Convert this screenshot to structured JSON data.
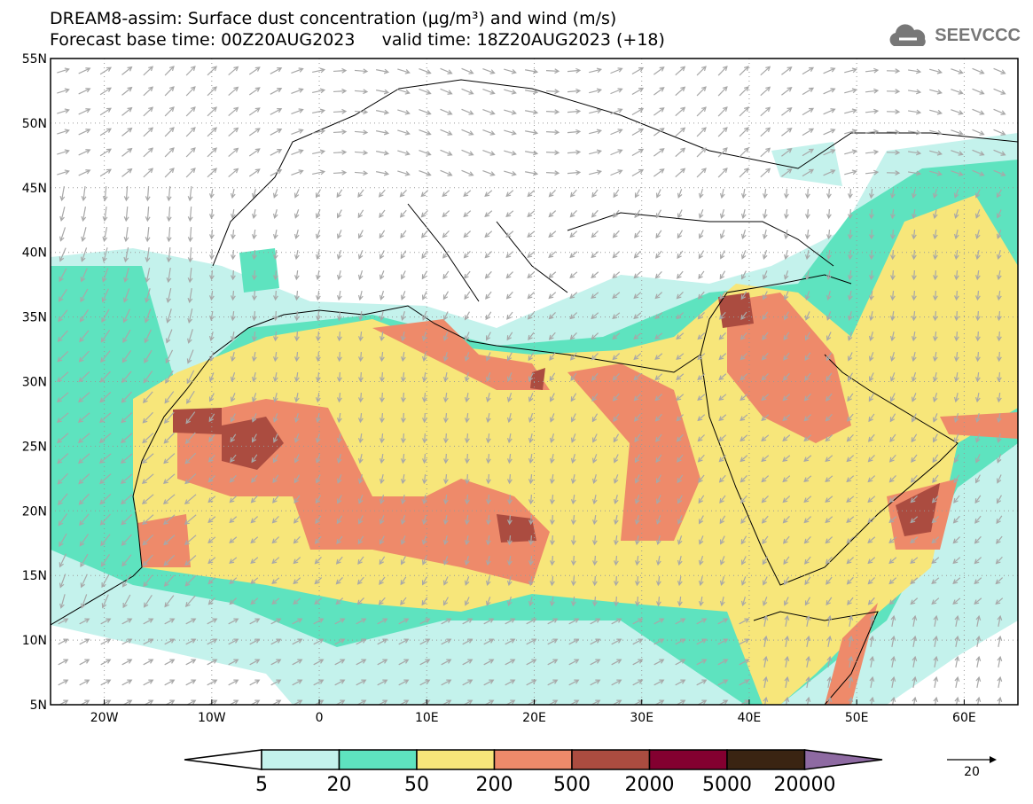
{
  "header": {
    "title": "DREAM8-assim: Surface dust concentration (µg/m³) and wind (m/s)",
    "subtitle": "Forecast base time: 00Z20AUG2023     valid time: 18Z20AUG2023 (+18)",
    "logo": "SEEVCCC"
  },
  "map": {
    "lat_labels": [
      "55N",
      "50N",
      "45N",
      "40N",
      "35N",
      "30N",
      "25N",
      "20N",
      "15N",
      "10N",
      "5N"
    ],
    "lat_values": [
      55,
      50,
      45,
      40,
      35,
      30,
      25,
      20,
      15,
      10,
      5
    ],
    "lon_labels": [
      "20W",
      "10W",
      "0",
      "10E",
      "20E",
      "30E",
      "40E",
      "50E",
      "60E"
    ],
    "lon_values": [
      -20,
      -10,
      0,
      10,
      20,
      30,
      40,
      50,
      60
    ],
    "extent": {
      "lon": [
        -25,
        65
      ],
      "lat": [
        5,
        55
      ]
    }
  },
  "colorbar": {
    "labels": [
      "5",
      "20",
      "50",
      "200",
      "500",
      "2000",
      "5000",
      "20000"
    ],
    "colors": [
      "#c4f2ec",
      "#5ee3bf",
      "#f7e67a",
      "#ee8a6a",
      "#ab4c40",
      "#830030",
      "#3a2412",
      "#8e6aa2"
    ],
    "reference_vector": "20"
  }
}
